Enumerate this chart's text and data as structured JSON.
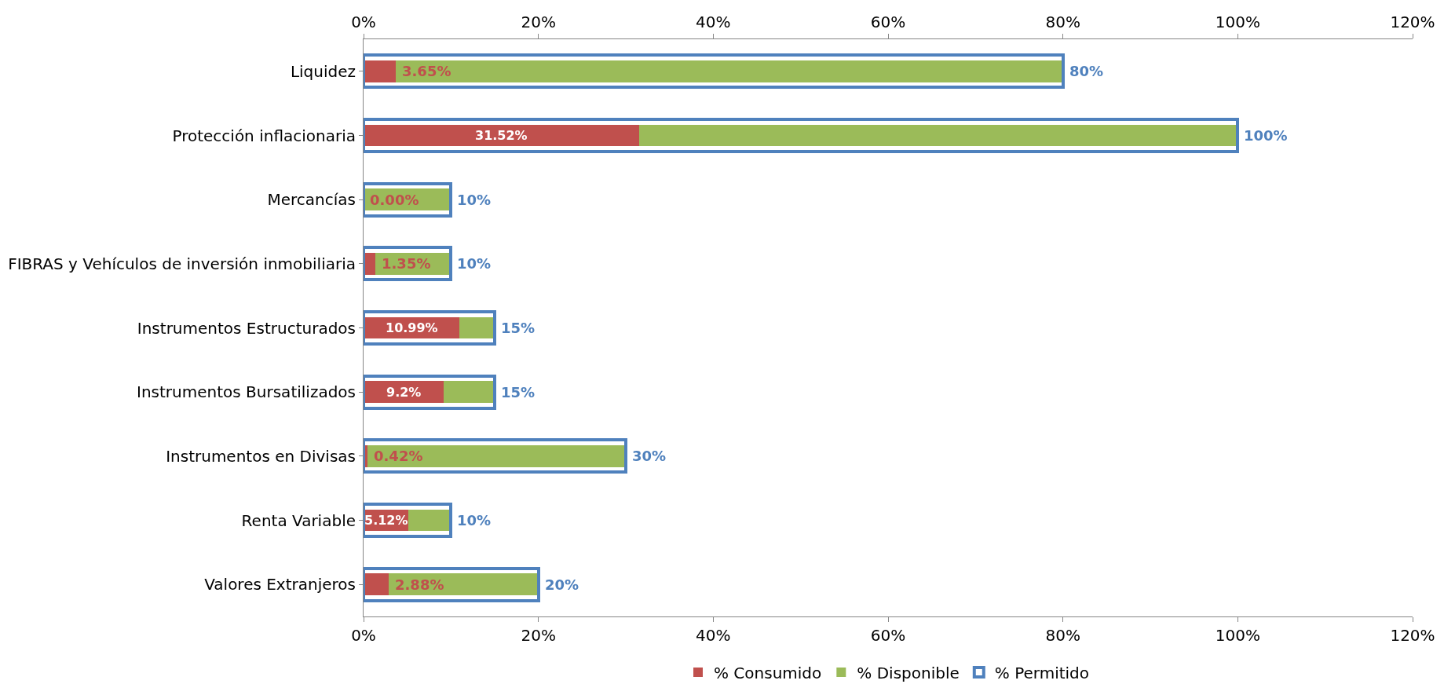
{
  "chart_data": {
    "type": "bar",
    "orientation": "horizontal",
    "stacked": true,
    "categories": [
      "Liquidez",
      "Protección inflacionaria",
      "Mercancías",
      "FIBRAS y Vehículos de inversión inmobiliaria",
      "Instrumentos Estructurados",
      "Instrumentos Bursatilizados",
      "Instrumentos en Divisas",
      "Renta Variable",
      "Valores Extranjeros"
    ],
    "series": [
      {
        "name": "% Consumido",
        "color": "#c0504d",
        "values": [
          3.65,
          31.52,
          0.0,
          1.35,
          10.99,
          9.2,
          0.42,
          5.12,
          2.88
        ],
        "value_labels": [
          "3.65%",
          "31.52%",
          "0.00%",
          "1.35%",
          "10.99%",
          "9.2%",
          "0.42%",
          "5.12%",
          "2.88%"
        ]
      },
      {
        "name": "% Disponible",
        "color": "#9bbb59",
        "values": [
          76.35,
          68.48,
          10,
          8.65,
          4.01,
          5.8,
          29.58,
          4.88,
          17.12
        ]
      },
      {
        "name": "% Permitido",
        "color": "#4f81bd",
        "axis": "y2",
        "values": [
          80,
          100,
          10,
          10,
          15,
          15,
          30,
          10,
          20
        ],
        "value_labels": [
          "80%",
          "100%",
          "10%",
          "10%",
          "15%",
          "15%",
          "30%",
          "10%",
          "20%"
        ]
      }
    ],
    "xlim": [
      0,
      120
    ],
    "xticks": [
      {
        "value": 0,
        "label": "0%"
      },
      {
        "value": 20,
        "label": "20%"
      },
      {
        "value": 40,
        "label": "40%"
      },
      {
        "value": 60,
        "label": "60%"
      },
      {
        "value": 80,
        "label": "80%"
      },
      {
        "value": 100,
        "label": "100%"
      },
      {
        "value": 120,
        "label": "120%"
      }
    ],
    "x2lim": [
      0,
      120
    ],
    "x2ticks": [
      {
        "value": 0,
        "label": "0%"
      },
      {
        "value": 20,
        "label": "20%"
      },
      {
        "value": 40,
        "label": "40%"
      },
      {
        "value": 60,
        "label": "60%"
      },
      {
        "value": 80,
        "label": "80%"
      },
      {
        "value": 100,
        "label": "100%"
      },
      {
        "value": 120,
        "label": "120%"
      }
    ],
    "legend": "bottom"
  }
}
